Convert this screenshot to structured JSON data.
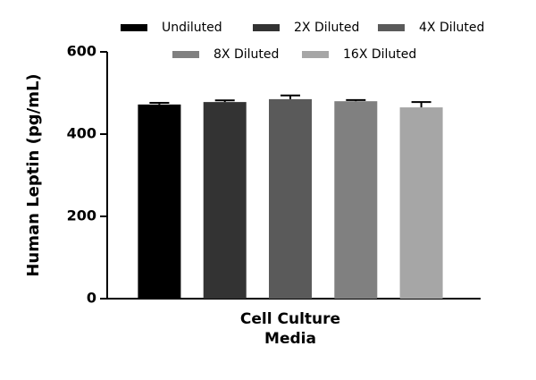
{
  "chart_data": {
    "type": "bar",
    "ylabel": "Human Leptin (pg/mL)",
    "categories": [
      "Cell Culture Media"
    ],
    "series": [
      {
        "name": "Undiluted",
        "color": "#000000",
        "values": [
          472
        ],
        "errors": [
          4
        ]
      },
      {
        "name": "2X Diluted",
        "color": "#333333",
        "values": [
          478
        ],
        "errors": [
          4
        ]
      },
      {
        "name": "4X Diluted",
        "color": "#5a5a5a",
        "values": [
          485
        ],
        "errors": [
          9
        ]
      },
      {
        "name": "8X Diluted",
        "color": "#808080",
        "values": [
          480
        ],
        "errors": [
          3
        ]
      },
      {
        "name": "16X Diluted",
        "color": "#a6a6a6",
        "values": [
          465
        ],
        "errors": [
          13
        ]
      }
    ],
    "ylim": [
      0,
      600
    ],
    "yticks": [
      0,
      200,
      400,
      600
    ],
    "grid": false,
    "legend": "top"
  }
}
